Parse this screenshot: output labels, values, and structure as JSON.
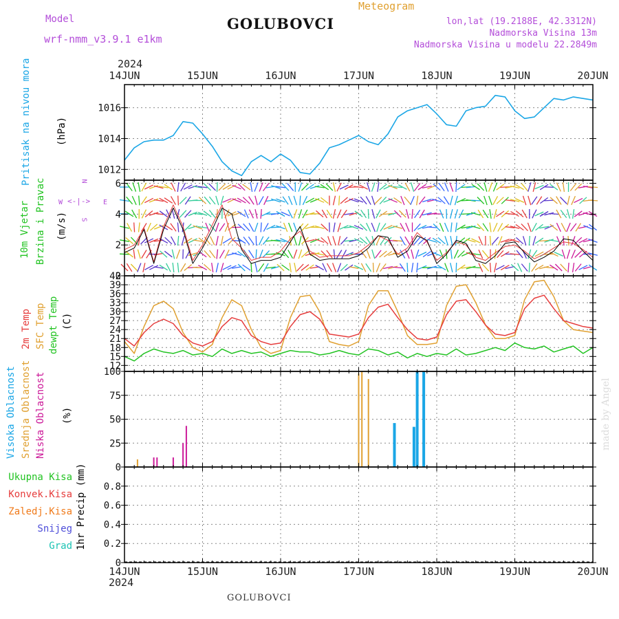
{
  "header": {
    "model_label": "Model",
    "model_name": "wrf-nmm_v3.9.1 e1km",
    "station": "GOLUBOVCI",
    "product": "Meteogram",
    "lonlat": "lon,lat (19.2188E, 42.3312N)",
    "elevation": "Nadmorska Visina 13m",
    "model_elevation": "Nadmorska Visina u modelu 22.2849m",
    "year_top": "2024",
    "year_bottom": "2024",
    "footer_station": "GOLUBOVCI",
    "credit": "made by Angel"
  },
  "colors": {
    "pressure": "#1aa6e6",
    "temp2m": "#e63c3c",
    "sfc_temp": "#e0a030",
    "dewpt": "#22c322",
    "high_cloud": "#1aa6e6",
    "mid_cloud": "#e0a030",
    "low_cloud": "#cc1a99",
    "wind_speed": "#000000",
    "wind_gust": "#e63c3c",
    "legend_purple": "#b34dd9",
    "total_precip": "#22c322",
    "conv_precip": "#e63c3c",
    "frz_precip": "#f07a1a",
    "snow": "#4d4dd9",
    "hail": "#1ac3b3"
  },
  "chart_data": [
    {
      "type": "line",
      "name": "pressure",
      "ylabel_main": "Pritisak na nivou mora",
      "ylabel_unit": "(hPa)",
      "x_ticks": [
        "14JUN",
        "15JUN",
        "16JUN",
        "17JUN",
        "18JUN",
        "19JUN",
        "20JUN"
      ],
      "ylim": [
        1011.3,
        1017.5
      ],
      "yticks": [
        1012,
        1014,
        1016
      ],
      "grid": true,
      "x_hours": [
        0,
        3,
        6,
        9,
        12,
        15,
        18,
        21,
        24,
        27,
        30,
        33,
        36,
        39,
        42,
        45,
        48,
        51,
        54,
        57,
        60,
        63,
        66,
        69,
        72,
        75,
        78,
        81,
        84,
        87,
        90,
        93,
        96,
        99,
        102,
        105,
        108,
        111,
        114,
        117,
        120,
        123,
        126,
        129,
        132,
        135,
        138,
        141,
        144
      ],
      "values": [
        1012.6,
        1013.4,
        1013.8,
        1013.9,
        1013.9,
        1014.2,
        1015.1,
        1015.0,
        1014.3,
        1013.5,
        1012.5,
        1011.9,
        1011.6,
        1012.5,
        1012.9,
        1012.5,
        1013.0,
        1012.6,
        1011.8,
        1011.7,
        1012.4,
        1013.4,
        1013.6,
        1013.9,
        1014.2,
        1013.8,
        1013.6,
        1014.3,
        1015.4,
        1015.8,
        1016.0,
        1016.2,
        1015.6,
        1014.9,
        1014.8,
        1015.8,
        1016.0,
        1016.1,
        1016.8,
        1016.7,
        1015.8,
        1015.3,
        1015.4,
        1016.0,
        1016.6,
        1016.5,
        1016.7,
        1016.6,
        1016.5
      ]
    },
    {
      "type": "line",
      "name": "wind",
      "ylabel_main": "10m Vjetar",
      "ylabel_sub": "Brzina i Pravac",
      "ylabel_unit": "(m/s)",
      "compass": {
        "north": "N",
        "west": "W",
        "east": "E",
        "south": "S"
      },
      "ylim": [
        0,
        6.2
      ],
      "yticks": [
        0,
        2,
        4,
        6
      ],
      "grid": true,
      "x_hours": [
        0,
        3,
        6,
        9,
        12,
        15,
        18,
        21,
        24,
        27,
        30,
        33,
        36,
        39,
        42,
        45,
        48,
        51,
        54,
        57,
        60,
        63,
        66,
        69,
        72,
        75,
        78,
        81,
        84,
        87,
        90,
        93,
        96,
        99,
        102,
        105,
        108,
        111,
        114,
        117,
        120,
        123,
        126,
        129,
        132,
        135,
        138,
        141,
        144
      ],
      "speed": [
        1.5,
        1.8,
        3.0,
        0.8,
        3.0,
        4.4,
        3.0,
        0.8,
        1.8,
        3.0,
        4.4,
        4.0,
        1.7,
        0.8,
        1.0,
        1.0,
        1.2,
        2.2,
        3.2,
        1.4,
        1.0,
        1.1,
        1.1,
        1.1,
        1.3,
        1.8,
        2.6,
        2.5,
        1.2,
        1.6,
        2.6,
        2.3,
        0.8,
        1.4,
        2.3,
        2.1,
        1.0,
        0.8,
        1.3,
        2.1,
        2.2,
        1.5,
        0.9,
        1.2,
        1.6,
        2.4,
        2.3,
        1.6,
        1.0
      ],
      "gust": [
        1.7,
        2.0,
        3.1,
        0.9,
        3.2,
        4.6,
        3.2,
        1.0,
        2.0,
        3.3,
        4.6,
        2.4,
        1.8,
        1.0,
        1.2,
        1.2,
        1.6,
        2.4,
        2.9,
        1.6,
        1.2,
        1.3,
        1.3,
        1.3,
        1.5,
        2.0,
        2.6,
        2.3,
        1.4,
        1.8,
        2.8,
        2.2,
        1.0,
        1.5,
        2.2,
        2.0,
        1.2,
        1.0,
        1.5,
        1.9,
        2.0,
        1.6,
        1.1,
        1.4,
        1.8,
        2.2,
        2.1,
        1.7,
        1.2
      ]
    },
    {
      "type": "line",
      "name": "temperature",
      "ylabel_t2": "2m Temp",
      "ylabel_sfc": "SFC Temp",
      "ylabel_dew": "dewpt Temp",
      "ylabel_unit": "(C)",
      "ylim": [
        10,
        42
      ],
      "yticks": [
        12,
        15,
        18,
        21,
        24,
        27,
        30,
        33,
        36,
        39,
        42
      ],
      "grid": true,
      "x_hours": [
        0,
        3,
        6,
        9,
        12,
        15,
        18,
        21,
        24,
        27,
        30,
        33,
        36,
        39,
        42,
        45,
        48,
        51,
        54,
        57,
        60,
        63,
        66,
        69,
        72,
        75,
        78,
        81,
        84,
        87,
        90,
        93,
        96,
        99,
        102,
        105,
        108,
        111,
        114,
        117,
        120,
        123,
        126,
        129,
        132,
        135,
        138,
        141,
        144
      ],
      "t2": [
        21.0,
        18.5,
        23.0,
        26.0,
        27.5,
        26.0,
        22.0,
        19.5,
        18.5,
        20.0,
        25.0,
        28.0,
        27.0,
        22.0,
        20.0,
        19.0,
        19.5,
        25.0,
        29.0,
        30.0,
        27.5,
        22.5,
        22.0,
        21.5,
        22.5,
        28.0,
        31.5,
        32.5,
        28.0,
        24.0,
        21.0,
        20.5,
        21.5,
        29.0,
        33.5,
        34.0,
        30.0,
        25.5,
        22.5,
        22.0,
        23.0,
        31.0,
        34.5,
        35.5,
        31.0,
        27.0,
        26.0,
        25.0,
        24.5
      ],
      "sfc": [
        20.0,
        16.0,
        25.0,
        32.0,
        33.5,
        31.0,
        23.0,
        18.0,
        16.5,
        19.0,
        28.0,
        34.0,
        32.0,
        24.0,
        18.0,
        16.0,
        17.0,
        28.0,
        35.0,
        35.5,
        30.0,
        20.0,
        19.0,
        18.5,
        20.0,
        32.0,
        37.0,
        37.0,
        30.0,
        22.0,
        19.0,
        19.0,
        19.5,
        32.0,
        38.5,
        39.0,
        33.0,
        25.5,
        21.0,
        21.0,
        22.0,
        34.0,
        40.0,
        40.5,
        35.0,
        27.0,
        24.0,
        23.5,
        23.0
      ],
      "dew": [
        15.0,
        13.5,
        16.0,
        17.5,
        16.5,
        16.0,
        17.0,
        15.5,
        16.0,
        15.0,
        17.5,
        16.0,
        17.0,
        16.0,
        16.5,
        15.0,
        16.0,
        17.0,
        16.5,
        16.5,
        15.5,
        16.0,
        17.0,
        16.0,
        15.5,
        17.5,
        17.0,
        15.5,
        16.5,
        14.5,
        16.0,
        15.0,
        16.0,
        15.5,
        17.5,
        15.5,
        16.0,
        17.0,
        18.0,
        17.0,
        19.5,
        18.0,
        17.5,
        18.5,
        16.5,
        17.5,
        18.5,
        16.0,
        18.0
      ]
    },
    {
      "type": "bar",
      "name": "cloud",
      "ylabel_high": "Visoka Oblacnost",
      "ylabel_mid": "Srednja Oblacnost",
      "ylabel_low": "Niska Oblacnost",
      "ylabel_unit": "(%)",
      "ylim": [
        0,
        100
      ],
      "yticks": [
        0,
        25,
        50,
        75,
        100
      ],
      "grid": true,
      "low": [
        {
          "x": 9,
          "v": 10
        },
        {
          "x": 10,
          "v": 10
        },
        {
          "x": 15,
          "v": 10
        },
        {
          "x": 18,
          "v": 25
        },
        {
          "x": 19,
          "v": 43
        }
      ],
      "mid": [
        {
          "x": 4,
          "v": 8
        },
        {
          "x": 72,
          "v": 98
        },
        {
          "x": 73,
          "v": 100
        },
        {
          "x": 75,
          "v": 92
        }
      ],
      "high": [
        {
          "x": 83,
          "v": 46
        },
        {
          "x": 89,
          "v": 42
        },
        {
          "x": 90,
          "v": 100
        },
        {
          "x": 92,
          "v": 100
        }
      ]
    },
    {
      "type": "bar",
      "name": "precipitation",
      "legend": [
        "Ukupna Kisa",
        "Konvek.Kisa",
        "Zaledj.Kisa",
        "Snijeg",
        "Grad"
      ],
      "ylabel_unit": "1hr Precip (mm)",
      "ylim": [
        0,
        1.0
      ],
      "yticks": [
        0,
        0.2,
        0.4,
        0.6,
        0.8
      ],
      "ytick_labels": [
        "0",
        "0.2",
        "0.4",
        "0.6",
        "0.8"
      ],
      "grid": true,
      "values": []
    }
  ]
}
